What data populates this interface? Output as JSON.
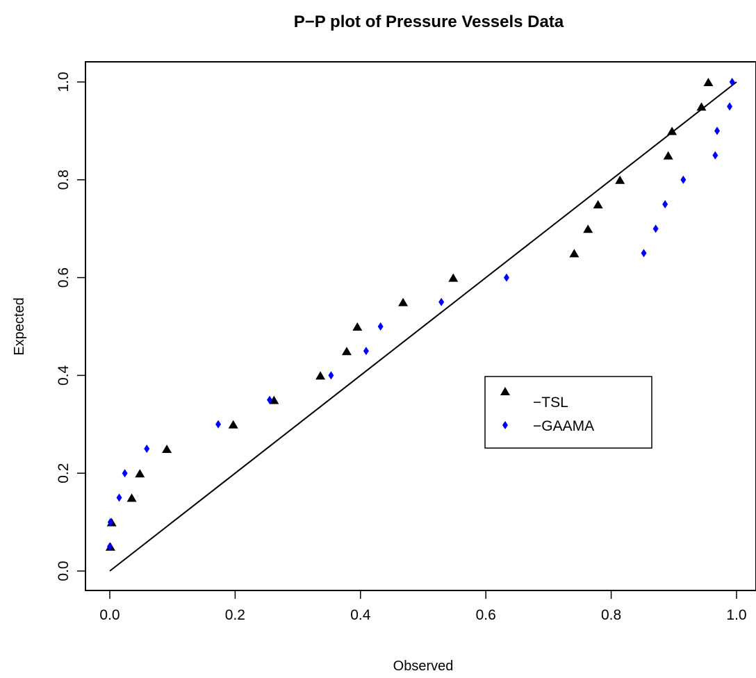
{
  "chart_data": {
    "type": "scatter",
    "title": "P−P plot of Pressure Vessels Data",
    "xlabel": "Observed",
    "ylabel": "Expected",
    "xlim": [
      0,
      1
    ],
    "ylim": [
      0,
      1
    ],
    "x_ticks": [
      "0.0",
      "0.2",
      "0.4",
      "0.6",
      "0.8",
      "1.0"
    ],
    "y_ticks": [
      "0.0",
      "0.2",
      "0.4",
      "0.6",
      "0.8",
      "1.0"
    ],
    "reference_line": {
      "from": [
        0,
        0
      ],
      "to": [
        1,
        1
      ]
    },
    "grid": false,
    "legend_position": "center-right",
    "series": [
      {
        "name": "TSL",
        "legend_label": "−TSL",
        "marker": "triangle",
        "color": "#000000",
        "x": [
          0.001,
          0.003,
          0.035,
          0.048,
          0.091,
          0.197,
          0.262,
          0.336,
          0.378,
          0.395,
          0.468,
          0.548,
          0.741,
          0.763,
          0.779,
          0.814,
          0.891,
          0.897,
          0.944,
          0.955
        ],
        "y": [
          0.05,
          0.1,
          0.15,
          0.2,
          0.25,
          0.3,
          0.35,
          0.4,
          0.45,
          0.5,
          0.55,
          0.6,
          0.65,
          0.7,
          0.75,
          0.8,
          0.85,
          0.9,
          0.95,
          1.0
        ]
      },
      {
        "name": "GAAMA",
        "legend_label": "−GAAMA",
        "marker": "diamond",
        "color": "#0000ff",
        "x": [
          0.0,
          0.001,
          0.015,
          0.024,
          0.059,
          0.173,
          0.255,
          0.353,
          0.409,
          0.432,
          0.529,
          0.633,
          0.852,
          0.871,
          0.886,
          0.915,
          0.966,
          0.969,
          0.989,
          0.993
        ],
        "y": [
          0.05,
          0.1,
          0.15,
          0.2,
          0.25,
          0.3,
          0.35,
          0.4,
          0.45,
          0.5,
          0.55,
          0.6,
          0.65,
          0.7,
          0.75,
          0.8,
          0.85,
          0.9,
          0.95,
          1.0
        ]
      }
    ]
  }
}
